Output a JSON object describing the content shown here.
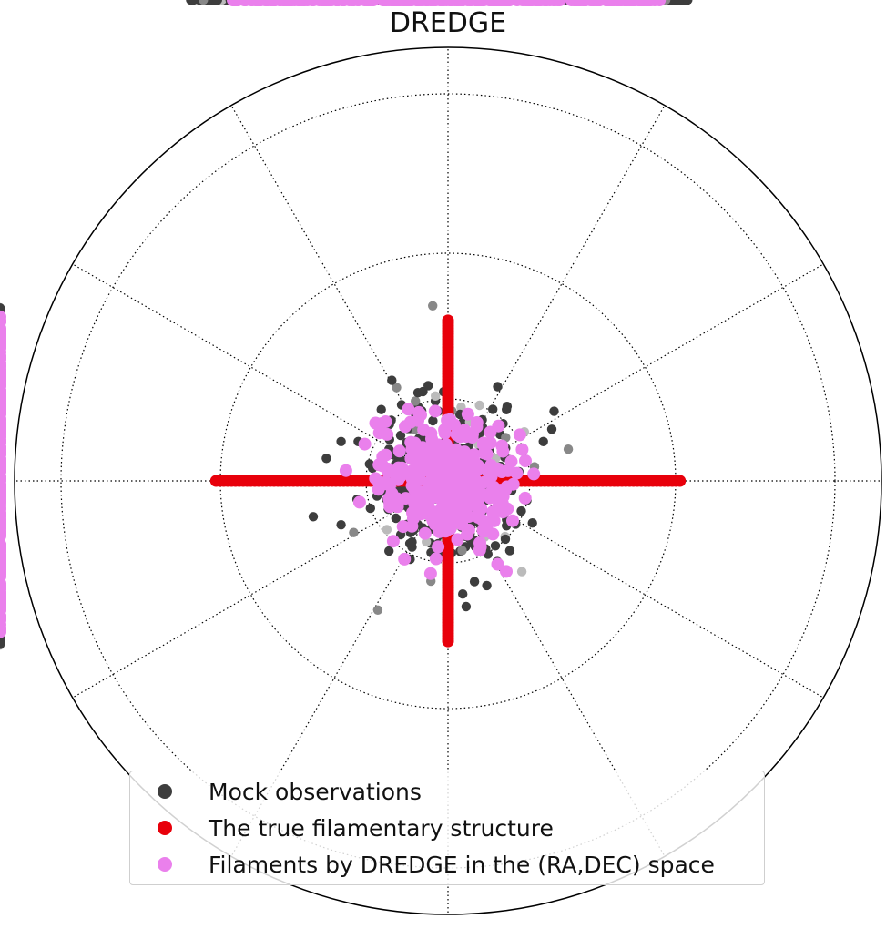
{
  "chart_data": {
    "type": "scatter",
    "projection": "polar",
    "title": "DREDGE",
    "grid": true,
    "legend_position": "lower center",
    "series": [
      {
        "name": "Mock observations",
        "color": "#3d3d3d",
        "description_shape": "cross-shaped scatter of grey/black points around the pole",
        "arms": {
          "east": 0.56,
          "west": 0.6,
          "north": 0.4,
          "south": 0.38,
          "spread": 0.085
        }
      },
      {
        "name": "The true filamentary structure",
        "color": "#e8000b",
        "arms": {
          "east": 0.535,
          "west": 0.535,
          "north": 0.37,
          "south": 0.37
        }
      },
      {
        "name": "Filaments by DREDGE in the (RA,DEC) space",
        "color": "#ea80ec",
        "arms": {
          "east": 0.5,
          "west": 0.5,
          "north": 0.38,
          "south": 0.35,
          "spread": 0.04
        }
      }
    ]
  }
}
